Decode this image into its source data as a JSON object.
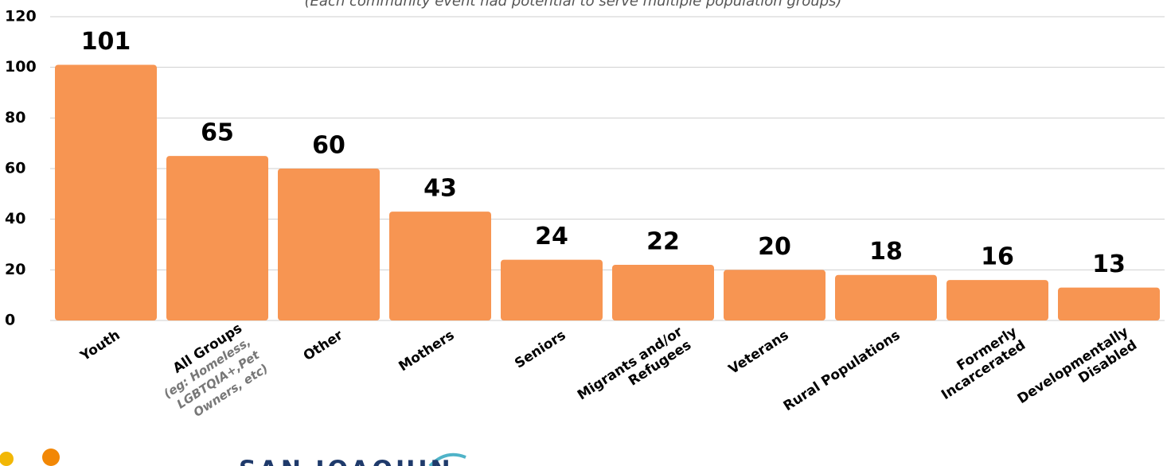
{
  "chart_data": {
    "type": "bar",
    "subtitle": "(Each community event had potential to serve multiple population groups)",
    "categories": [
      "Youth",
      "All Groups\n(eg: Homeless,\nLGBTQIA+,Pet\nOwners, etc)",
      "Other",
      "Mothers",
      "Seniors",
      "Migrants and/or\nRefugees",
      "Veterans",
      "Rural Populations",
      "Formerly\nIncarcerated",
      "Developmentally\nDisabled"
    ],
    "values": [
      101,
      65,
      60,
      43,
      24,
      22,
      20,
      18,
      16,
      13
    ],
    "color": "#f79552",
    "ylim": [
      0,
      120
    ],
    "yticks": [
      0,
      20,
      40,
      60,
      80,
      100,
      120
    ],
    "grid": true,
    "logo_text": "SAN JOAQUIN"
  }
}
